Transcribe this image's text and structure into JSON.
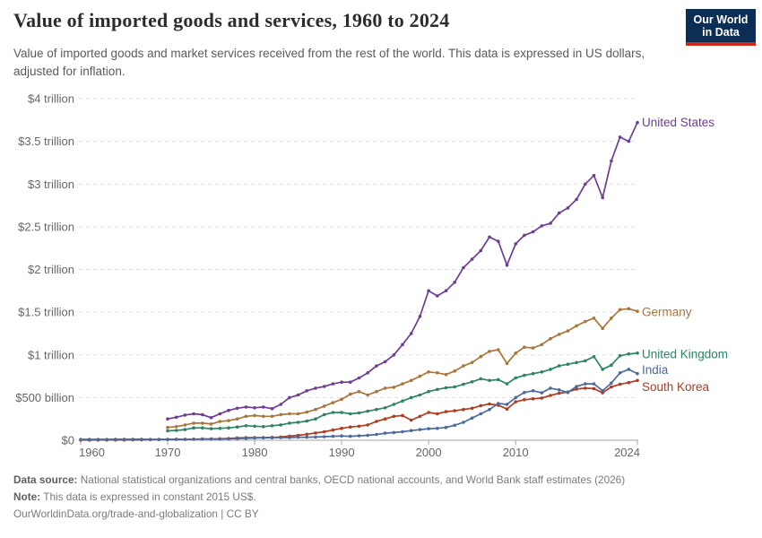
{
  "header": {
    "title": "Value of imported goods and services, 1960 to 2024",
    "subtitle": "Value of imported goods and market services received from the rest of the world. This data is expressed in US dollars, adjusted for inflation.",
    "logo_line1": "Our World",
    "logo_line2": "in Data",
    "logo_bg": "#0d2e54",
    "logo_red": "#cf2a17"
  },
  "footer": {
    "source_label": "Data source:",
    "source_text": "National statistical organizations and central banks, OECD national accounts, and World Bank staff estimates (2026)",
    "note_label": "Note:",
    "note_text": "This data is expressed in constant 2015 US$.",
    "citation": "OurWorldinData.org/trade-and-globalization | CC BY"
  },
  "chart_data": {
    "type": "line",
    "title": "Value of imported goods and services, 1960 to 2024",
    "unit": "constant 2015 US$",
    "value_unit": "trillion USD",
    "grid": true,
    "legend_position": "right-end-labels",
    "x_axis": {
      "min": 1960,
      "max": 2024,
      "ticks": [
        1960,
        1970,
        1980,
        1990,
        2000,
        2010,
        2024
      ]
    },
    "y_axis": {
      "min": 0,
      "max": 4,
      "ticks": [
        {
          "v": 4,
          "label": "$4 trillion"
        },
        {
          "v": 3.5,
          "label": "$3.5 trillion"
        },
        {
          "v": 3,
          "label": "$3 trillion"
        },
        {
          "v": 2.5,
          "label": "$2.5 trillion"
        },
        {
          "v": 2,
          "label": "$2 trillion"
        },
        {
          "v": 1.5,
          "label": "$1.5 trillion"
        },
        {
          "v": 1,
          "label": "$1 trillion"
        },
        {
          "v": 0.5,
          "label": "$500 billion"
        },
        {
          "v": 0,
          "label": "$0"
        }
      ]
    },
    "series": [
      {
        "name": "United States",
        "color": "#6d3e91",
        "start_year": 1970,
        "label_dy": 0,
        "values": [
          0.25,
          0.27,
          0.295,
          0.31,
          0.3,
          0.265,
          0.31,
          0.35,
          0.375,
          0.39,
          0.38,
          0.39,
          0.37,
          0.42,
          0.5,
          0.53,
          0.58,
          0.61,
          0.63,
          0.66,
          0.68,
          0.68,
          0.73,
          0.79,
          0.87,
          0.92,
          1.0,
          1.12,
          1.25,
          1.45,
          1.75,
          1.69,
          1.75,
          1.85,
          2.02,
          2.12,
          2.22,
          2.38,
          2.33,
          2.05,
          2.3,
          2.4,
          2.44,
          2.51,
          2.54,
          2.66,
          2.72,
          2.82,
          3.0,
          3.1,
          2.84,
          3.27,
          3.55,
          3.5,
          3.72
        ]
      },
      {
        "name": "Germany",
        "color": "#a8763a",
        "start_year": 1970,
        "label_dy": 1,
        "values": [
          0.15,
          0.16,
          0.18,
          0.2,
          0.2,
          0.19,
          0.22,
          0.23,
          0.25,
          0.28,
          0.29,
          0.28,
          0.28,
          0.3,
          0.31,
          0.31,
          0.33,
          0.36,
          0.4,
          0.44,
          0.48,
          0.54,
          0.57,
          0.53,
          0.57,
          0.61,
          0.62,
          0.66,
          0.7,
          0.75,
          0.8,
          0.79,
          0.77,
          0.81,
          0.87,
          0.91,
          0.98,
          1.04,
          1.06,
          0.9,
          1.02,
          1.09,
          1.08,
          1.12,
          1.19,
          1.24,
          1.28,
          1.34,
          1.39,
          1.43,
          1.31,
          1.43,
          1.53,
          1.54,
          1.51
        ]
      },
      {
        "name": "United Kingdom",
        "color": "#2c8465",
        "start_year": 1970,
        "label_dy": 1,
        "values": [
          0.11,
          0.115,
          0.125,
          0.145,
          0.145,
          0.135,
          0.14,
          0.145,
          0.155,
          0.17,
          0.165,
          0.16,
          0.17,
          0.18,
          0.2,
          0.21,
          0.225,
          0.25,
          0.3,
          0.325,
          0.325,
          0.31,
          0.32,
          0.34,
          0.36,
          0.38,
          0.42,
          0.46,
          0.5,
          0.53,
          0.57,
          0.595,
          0.615,
          0.625,
          0.655,
          0.685,
          0.72,
          0.7,
          0.71,
          0.66,
          0.73,
          0.76,
          0.78,
          0.8,
          0.83,
          0.87,
          0.89,
          0.91,
          0.93,
          0.98,
          0.83,
          0.88,
          0.99,
          1.01,
          1.02
        ]
      },
      {
        "name": "South Korea",
        "color": "#b13b20",
        "start_year": 1960,
        "label_dy": 7,
        "values": [
          0.002,
          0.002,
          0.003,
          0.003,
          0.003,
          0.003,
          0.004,
          0.005,
          0.007,
          0.008,
          0.009,
          0.01,
          0.01,
          0.013,
          0.015,
          0.015,
          0.018,
          0.021,
          0.027,
          0.03,
          0.03,
          0.032,
          0.034,
          0.038,
          0.048,
          0.058,
          0.07,
          0.085,
          0.1,
          0.12,
          0.14,
          0.155,
          0.165,
          0.18,
          0.22,
          0.25,
          0.28,
          0.29,
          0.235,
          0.28,
          0.325,
          0.31,
          0.335,
          0.345,
          0.36,
          0.375,
          0.405,
          0.425,
          0.41,
          0.365,
          0.45,
          0.475,
          0.485,
          0.495,
          0.525,
          0.55,
          0.565,
          0.6,
          0.61,
          0.605,
          0.555,
          0.625,
          0.655,
          0.675,
          0.7
        ]
      },
      {
        "name": "India",
        "color": "#4c6a9c",
        "start_year": 1960,
        "label_dy": -4,
        "values": [
          0.01,
          0.01,
          0.011,
          0.011,
          0.012,
          0.012,
          0.012,
          0.012,
          0.011,
          0.011,
          0.011,
          0.012,
          0.012,
          0.013,
          0.014,
          0.015,
          0.015,
          0.017,
          0.02,
          0.022,
          0.026,
          0.028,
          0.029,
          0.031,
          0.032,
          0.036,
          0.036,
          0.038,
          0.042,
          0.046,
          0.05,
          0.046,
          0.052,
          0.058,
          0.068,
          0.083,
          0.09,
          0.1,
          0.113,
          0.125,
          0.135,
          0.14,
          0.15,
          0.175,
          0.21,
          0.26,
          0.31,
          0.36,
          0.43,
          0.42,
          0.5,
          0.56,
          0.58,
          0.555,
          0.61,
          0.59,
          0.56,
          0.63,
          0.66,
          0.66,
          0.58,
          0.67,
          0.79,
          0.83,
          0.78
        ]
      }
    ]
  }
}
